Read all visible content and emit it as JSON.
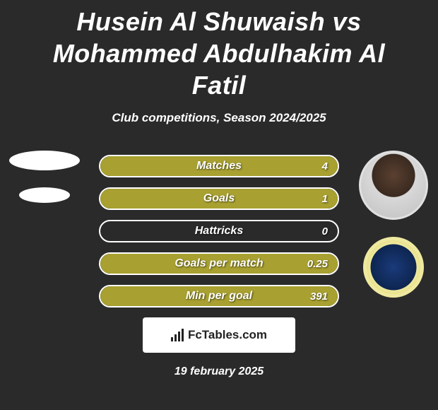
{
  "title": "Husein Al Shuwaish vs Mohammed Abdulhakim Al Fatil",
  "subtitle": "Club competitions, Season 2024/2025",
  "bar_fill_color": "#a8a030",
  "bar_border_color": "#ffffff",
  "bar_bg_color": "transparent",
  "stats": [
    {
      "label": "Matches",
      "value": "4",
      "fill_pct": 100
    },
    {
      "label": "Goals",
      "value": "1",
      "fill_pct": 100
    },
    {
      "label": "Hattricks",
      "value": "0",
      "fill_pct": 0
    },
    {
      "label": "Goals per match",
      "value": "0.25",
      "fill_pct": 100
    },
    {
      "label": "Min per goal",
      "value": "391",
      "fill_pct": 100
    }
  ],
  "footer_brand": "FcTables.com",
  "footer_date": "19 february 2025",
  "left_player": {
    "has_photo": false,
    "has_club": false
  },
  "right_player": {
    "has_photo": true,
    "has_club": true
  },
  "club_colors": {
    "outer": "#efe9a0",
    "inner": "#0d2550"
  }
}
